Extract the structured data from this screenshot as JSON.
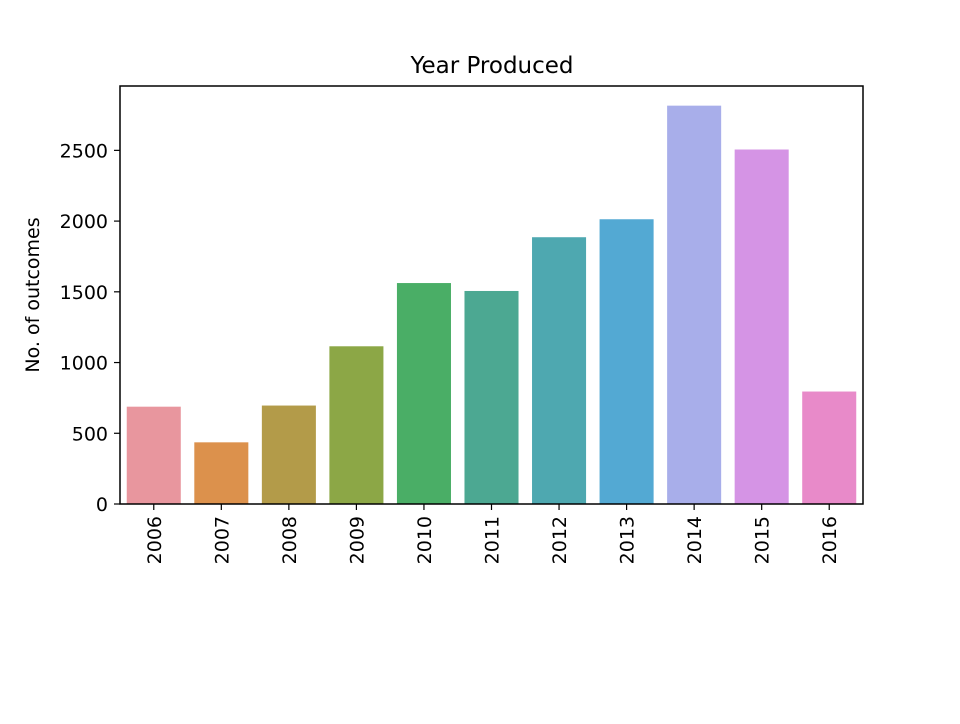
{
  "chart_data": {
    "type": "bar",
    "title": "Year Produced",
    "xlabel": "",
    "ylabel": "No. of outcomes",
    "categories": [
      "2006",
      "2007",
      "2008",
      "2009",
      "2010",
      "2011",
      "2012",
      "2013",
      "2014",
      "2015",
      "2016"
    ],
    "values": [
      688,
      436,
      696,
      1115,
      1562,
      1506,
      1886,
      2013,
      2816,
      2506,
      795
    ],
    "colors": [
      "#e8969e",
      "#dc914c",
      "#b39b49",
      "#8ca746",
      "#4aae66",
      "#4ca892",
      "#4ea8b0",
      "#53a9d3",
      "#a8aeea",
      "#d594e5",
      "#e88ac9"
    ],
    "yticks": [
      0,
      500,
      1000,
      1500,
      2000,
      2500
    ],
    "ylim": [
      0,
      2955
    ],
    "grid": false,
    "legend": "none"
  }
}
